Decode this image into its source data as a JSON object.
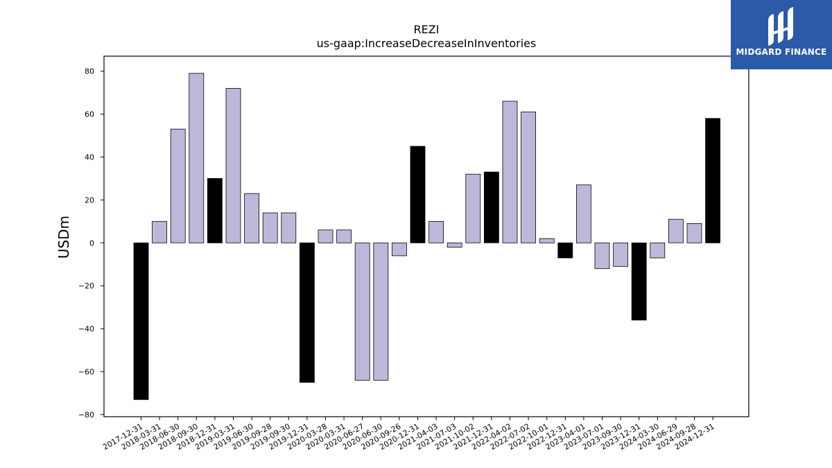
{
  "brand": {
    "name": "MIDGARD FINANCE",
    "bg": "#2b5aa8"
  },
  "chart_data": {
    "type": "bar",
    "title": "REZI",
    "subtitle": "us-gaap:IncreaseDecreaseInInventories",
    "xlabel": "",
    "ylabel": "USDm",
    "ylim": [
      -81,
      87
    ],
    "yticks": [
      -80,
      -60,
      -40,
      -20,
      0,
      20,
      40,
      60,
      80
    ],
    "grid": false,
    "colors": {
      "quarter": "#bdb8d9",
      "annual": "#000000",
      "edge": "#000000"
    },
    "categories": [
      "2017-12-31",
      "2018-03-31",
      "2018-06-30",
      "2018-09-30",
      "2018-12-31",
      "2019-03-31",
      "2019-06-30",
      "2019-09-28",
      "2019-09-30",
      "2019-12-31",
      "2020-03-28",
      "2020-03-31",
      "2020-06-27",
      "2020-06-30",
      "2020-09-26",
      "2020-12-31",
      "2021-04-03",
      "2021-07-03",
      "2021-10-02",
      "2021-12-31",
      "2022-04-02",
      "2022-07-02",
      "2022-10-01",
      "2022-12-31",
      "2023-04-01",
      "2023-07-01",
      "2023-09-30",
      "2023-12-31",
      "2024-03-30",
      "2024-06-29",
      "2024-09-28",
      "2024-12-31"
    ],
    "values": [
      -73,
      10,
      53,
      79,
      30,
      72,
      23,
      14,
      14,
      -65,
      6,
      6,
      -64,
      -64,
      -6,
      45,
      10,
      -2,
      32,
      33,
      66,
      61,
      2,
      -7,
      27,
      -12,
      -11,
      -36,
      -7,
      11,
      9,
      58
    ],
    "annual": [
      true,
      false,
      false,
      false,
      true,
      false,
      false,
      false,
      false,
      true,
      false,
      false,
      false,
      false,
      false,
      true,
      false,
      false,
      false,
      true,
      false,
      false,
      false,
      true,
      false,
      false,
      false,
      true,
      false,
      false,
      false,
      true
    ]
  }
}
